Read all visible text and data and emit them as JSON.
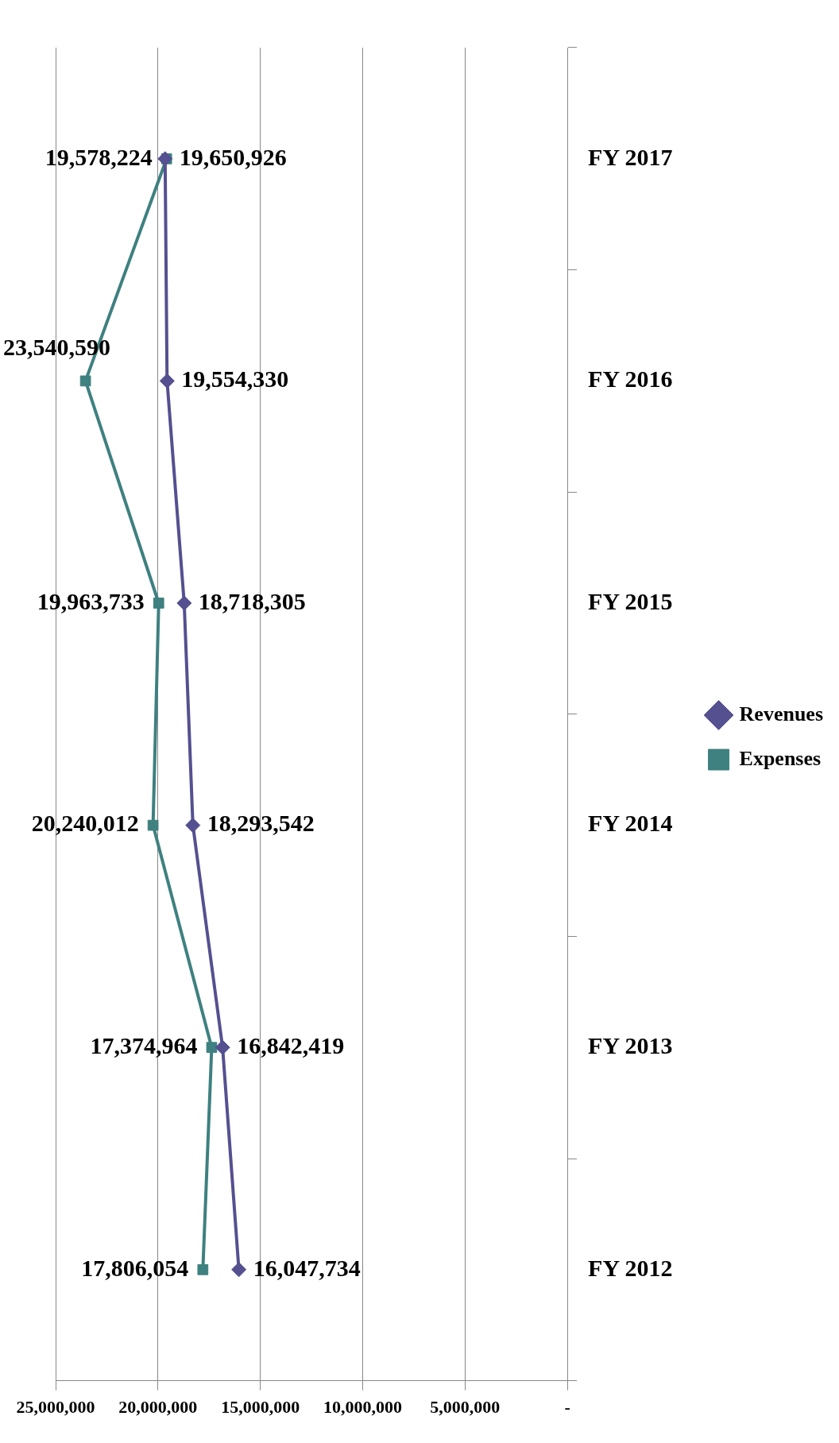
{
  "chart_data": {
    "type": "line",
    "orientation": "horizontal",
    "categories": [
      "FY 2017",
      "FY 2016",
      "FY 2015",
      "FY 2014",
      "FY 2013",
      "FY 2012"
    ],
    "series": [
      {
        "name": "Revenues",
        "color": "#55508f",
        "marker": "diamond",
        "values": [
          19650926,
          19554330,
          18718305,
          18293542,
          16842419,
          16047734
        ],
        "value_labels": [
          "19,650,926",
          "19,554,330",
          "18,718,305",
          "18,293,542",
          "16,842,419",
          "16,047,734"
        ]
      },
      {
        "name": "Expenses",
        "color": "#3f8080",
        "marker": "square",
        "values": [
          19578224,
          23540590,
          19963733,
          20240012,
          17374964,
          17806054
        ],
        "value_labels": [
          "19,578,224",
          "23,540,590",
          "19,963,733",
          "20,240,012",
          "17,374,964",
          "17,806,054"
        ]
      }
    ],
    "xlim": [
      25000000,
      0
    ],
    "xticks": [
      {
        "value": 0,
        "label": "-"
      },
      {
        "value": 5000000,
        "label": "5,000,000"
      },
      {
        "value": 10000000,
        "label": "10,000,000"
      },
      {
        "value": 15000000,
        "label": "15,000,000"
      },
      {
        "value": 20000000,
        "label": "20,000,000"
      },
      {
        "value": 25000000,
        "label": "25,000,000"
      }
    ],
    "grid": "x",
    "legend": "right"
  }
}
